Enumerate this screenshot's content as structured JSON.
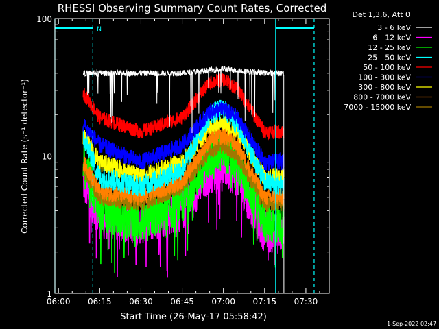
{
  "chart_data": {
    "type": "line",
    "title": "RHESSI Observing Summary Count Rates, Corrected",
    "xlabel": "Start Time (26-May-17 05:58:42)",
    "ylabel": "Corrected Count Rate (s⁻¹ detector⁻¹)",
    "y_scale": "log",
    "ylim": [
      1,
      100
    ],
    "xlim": [
      "05:58:42",
      "07:38:30"
    ],
    "x_ticks": [
      "06:00",
      "06:15",
      "06:30",
      "06:45",
      "07:00",
      "07:15",
      "07:30"
    ],
    "y_ticks": [
      "1",
      "10",
      "100"
    ],
    "legend_title": "Det 1,3,6, Att 0",
    "legend_position": "outside-right-top",
    "timestamp": "1-Sep-2022 02:47",
    "markers": {
      "night_label": "N",
      "solid_cyan_times": [
        "05:58:42",
        "07:19:00"
      ],
      "dashed_cyan_times": [
        "06:12:30",
        "07:33:00"
      ]
    },
    "series": [
      {
        "name": "3 - 6 keV",
        "color": "#ffffff",
        "x": [
          "06:09",
          "06:15",
          "06:30",
          "06:45",
          "06:55",
          "07:00",
          "07:05",
          "07:15",
          "07:22"
        ],
        "values": [
          40,
          40,
          40,
          40,
          42,
          43,
          42,
          40,
          40
        ]
      },
      {
        "name": "6 - 12 keV",
        "color": "#ff00ff",
        "x": [
          "06:09",
          "06:15",
          "06:30",
          "06:45",
          "06:55",
          "07:00",
          "07:05",
          "07:15",
          "07:22"
        ],
        "values": [
          6.5,
          3.5,
          3.2,
          4.0,
          7.5,
          8.5,
          7.0,
          2.8,
          2.7
        ]
      },
      {
        "name": "12 - 25 keV",
        "color": "#00ff00",
        "x": [
          "06:09",
          "06:15",
          "06:30",
          "06:45",
          "06:55",
          "07:00",
          "07:05",
          "07:15",
          "07:22"
        ],
        "values": [
          10,
          4,
          3.3,
          4.5,
          10,
          11,
          9,
          3.3,
          3.2
        ]
      },
      {
        "name": "25 - 50 keV",
        "color": "#00ffff",
        "x": [
          "06:09",
          "06:15",
          "06:30",
          "06:45",
          "06:55",
          "07:00",
          "07:05",
          "07:15",
          "07:22"
        ],
        "values": [
          14,
          7,
          6,
          8,
          20,
          22,
          17,
          6.5,
          6
        ]
      },
      {
        "name": "50 - 100 keV",
        "color": "#ff0000",
        "x": [
          "06:09",
          "06:15",
          "06:30",
          "06:45",
          "06:55",
          "07:00",
          "07:05",
          "07:15",
          "07:22"
        ],
        "values": [
          29,
          19,
          15,
          19,
          34,
          36,
          31,
          15,
          15
        ]
      },
      {
        "name": "100 - 300 keV",
        "color": "#0000ff",
        "x": [
          "06:09",
          "06:15",
          "06:30",
          "06:45",
          "06:55",
          "07:00",
          "07:05",
          "07:15",
          "07:22"
        ],
        "values": [
          17,
          12,
          9,
          12,
          21,
          22,
          19,
          9,
          9
        ]
      },
      {
        "name": "300 - 800 keV",
        "color": "#ffff00",
        "x": [
          "06:09",
          "06:15",
          "06:30",
          "06:45",
          "06:55",
          "07:00",
          "07:05",
          "07:15",
          "07:22"
        ],
        "values": [
          14,
          9,
          7,
          9,
          16,
          17,
          15,
          7,
          7
        ]
      },
      {
        "name": "800 - 7000 keV",
        "color": "#ff8000",
        "x": [
          "06:09",
          "06:15",
          "06:30",
          "06:45",
          "06:55",
          "07:00",
          "07:05",
          "07:15",
          "07:22"
        ],
        "values": [
          9,
          5.5,
          5,
          6.5,
          13,
          14,
          12,
          5,
          5
        ]
      },
      {
        "name": "7000 - 15000 keV",
        "color": "#a07800",
        "x": [
          "06:09",
          "06:15",
          "06:30",
          "06:45",
          "06:55",
          "07:00",
          "07:05",
          "07:15",
          "07:22"
        ],
        "values": [
          8,
          5,
          4.5,
          6,
          11,
          12,
          10,
          4.5,
          4.5
        ]
      }
    ]
  },
  "colors": {
    "background": "#000000",
    "axes": "#ffffff",
    "marker": "#00ffff"
  }
}
